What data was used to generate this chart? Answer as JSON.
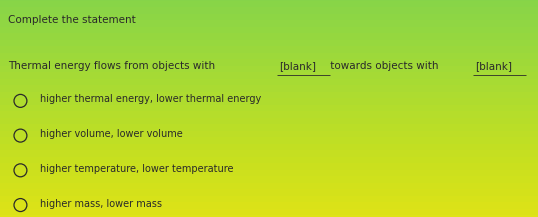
{
  "title": "Complete the statement",
  "statement_parts": [
    {
      "text": "Thermal energy flows from objects with ",
      "blank": false
    },
    {
      "text": "_[blank]_",
      "blank": true
    },
    {
      "text": " towards objects with ",
      "blank": false
    },
    {
      "text": "_[blank]_",
      "blank": true
    }
  ],
  "options": [
    "higher thermal energy, lower thermal energy",
    "higher volume, lower volume",
    "higher temperature, lower temperature",
    "higher mass, lower mass"
  ],
  "bg_color_top": "#c8c8c8",
  "bg_color_bottom": "#e8e8e8",
  "title_fontsize": 7.5,
  "statement_fontsize": 7.5,
  "option_fontsize": 7.0,
  "text_color": "#2a2a2a"
}
